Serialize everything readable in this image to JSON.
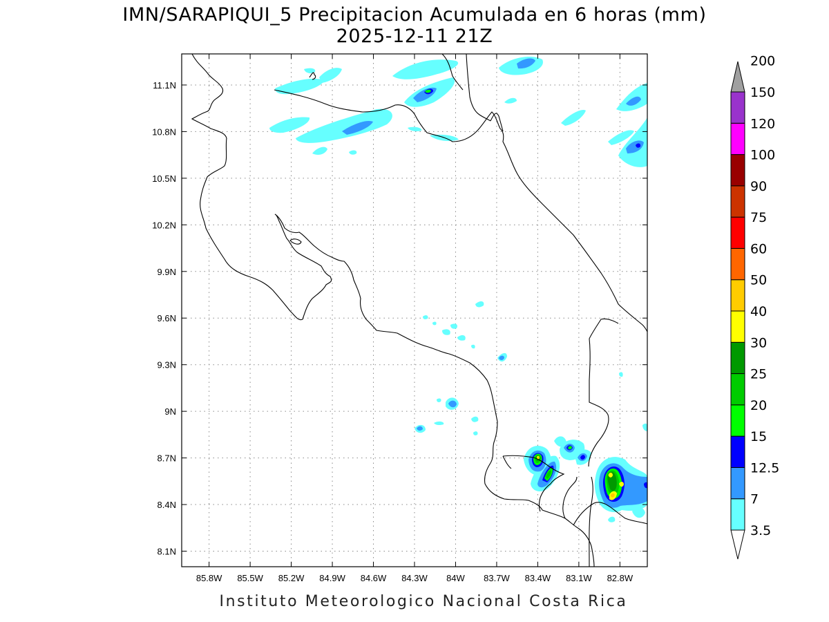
{
  "title": {
    "line1": "IMN/SARAPIQUI_5 Precipitacion Acumulada en 6 horas (mm)",
    "line2": "2025-12-11 21Z"
  },
  "footer": "Instituto Meteorologico Nacional Costa Rica",
  "map": {
    "lon_range": [
      -86.0,
      -82.6
    ],
    "lat_range": [
      8.0,
      11.3
    ],
    "x_ticks": [
      "85.8W",
      "85.5W",
      "85.2W",
      "84.9W",
      "84.6W",
      "84.3W",
      "84W",
      "83.7W",
      "83.4W",
      "83.1W",
      "82.8W"
    ],
    "y_ticks": [
      "11.1N",
      "10.8N",
      "10.5N",
      "10.2N",
      "9.9N",
      "9.6N",
      "9.3N",
      "9N",
      "8.7N",
      "8.4N",
      "8.1N"
    ],
    "grid": "dotted"
  },
  "colorbar": {
    "levels": [
      "3.5",
      "7",
      "12.5",
      "15",
      "20",
      "25",
      "30",
      "40",
      "50",
      "60",
      "75",
      "90",
      "100",
      "120",
      "150",
      "200"
    ],
    "colors": [
      "#66ffff",
      "#3399ff",
      "#0000ff",
      "#00ff00",
      "#00cc00",
      "#009900",
      "#ffff00",
      "#ffcc00",
      "#ff6600",
      "#ff0000",
      "#cc3300",
      "#990000",
      "#ff00ff",
      "#9933cc",
      "#f5f5f5",
      "#a0a0a0"
    ]
  }
}
